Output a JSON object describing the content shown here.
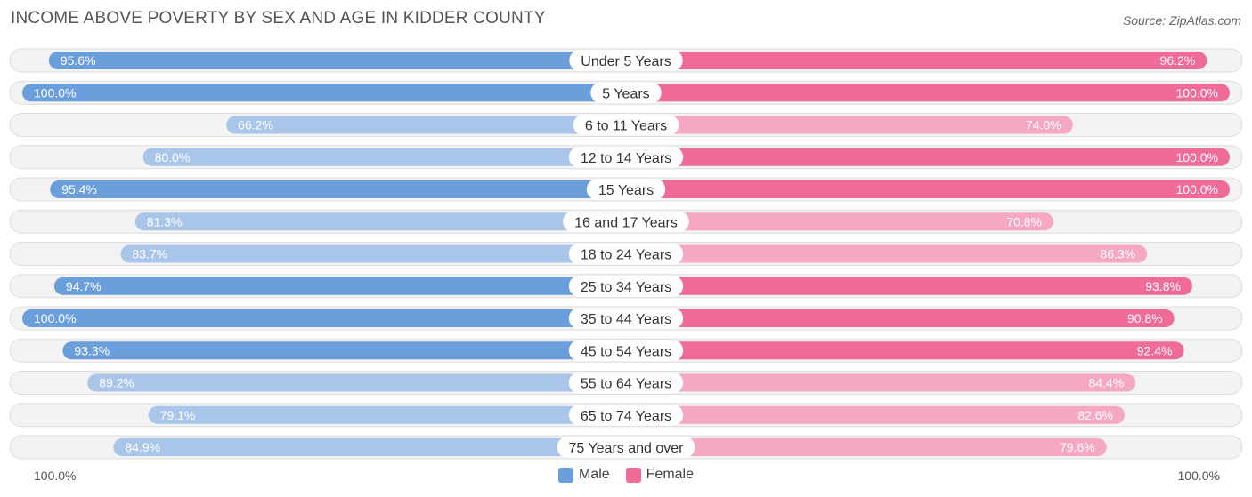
{
  "title": "INCOME ABOVE POVERTY BY SEX AND AGE IN KIDDER COUNTY",
  "source": "Source: ZipAtlas.com",
  "colors": {
    "male_strong": "#6a9fdc",
    "male_light": "#a9c6ea",
    "female_strong": "#f06b96",
    "female_light": "#f6a8c2",
    "track": "#efefef"
  },
  "axis": {
    "left_label": "100.0%",
    "right_label": "100.0%"
  },
  "legend": {
    "male": "Male",
    "female": "Female"
  },
  "chart_data": {
    "type": "bar",
    "orientation": "horizontal-diverging",
    "title": "INCOME ABOVE POVERTY BY SEX AND AGE IN KIDDER COUNTY",
    "categories": [
      "Under 5 Years",
      "5 Years",
      "6 to 11 Years",
      "12 to 14 Years",
      "15 Years",
      "16 and 17 Years",
      "18 to 24 Years",
      "25 to 34 Years",
      "35 to 44 Years",
      "45 to 54 Years",
      "55 to 64 Years",
      "65 to 74 Years",
      "75 Years and over"
    ],
    "series": [
      {
        "name": "Male",
        "values": [
          95.6,
          100.0,
          66.2,
          80.0,
          95.4,
          81.3,
          83.7,
          94.7,
          100.0,
          93.3,
          89.2,
          79.1,
          84.9
        ],
        "labels": [
          "95.6%",
          "100.0%",
          "66.2%",
          "80.0%",
          "95.4%",
          "81.3%",
          "83.7%",
          "94.7%",
          "100.0%",
          "93.3%",
          "89.2%",
          "79.1%",
          "84.9%"
        ]
      },
      {
        "name": "Female",
        "values": [
          96.2,
          100.0,
          74.0,
          100.0,
          100.0,
          70.8,
          86.3,
          93.8,
          90.8,
          92.4,
          84.4,
          82.6,
          79.6
        ],
        "labels": [
          "96.2%",
          "100.0%",
          "74.0%",
          "100.0%",
          "100.0%",
          "70.8%",
          "86.3%",
          "93.8%",
          "90.8%",
          "92.4%",
          "84.4%",
          "82.6%",
          "79.6%"
        ]
      }
    ],
    "xlim": [
      0,
      100
    ],
    "legend_position": "bottom-center"
  }
}
